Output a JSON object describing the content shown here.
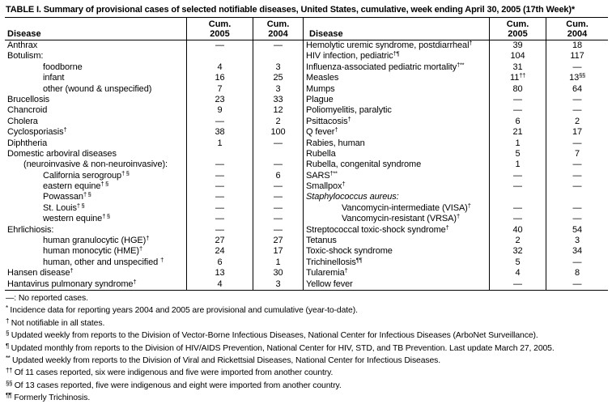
{
  "title": "TABLE I. Summary of provisional cases of selected notifiable diseases, United States, cumulative, week ending April 30, 2005 (17th Week)*",
  "colors": {
    "background": "#ffffff",
    "text": "#000000",
    "rule": "#000000"
  },
  "table": {
    "header": {
      "disease": "Disease",
      "cum": "Cum.",
      "y2005": "2005",
      "y2004": "2004"
    },
    "left_rows": [
      {
        "label": "Anthrax",
        "v05": "—",
        "v04": "—"
      },
      {
        "label": "Botulism:",
        "v05": "",
        "v04": ""
      },
      {
        "label": "foodborne",
        "indent": 2,
        "v05": "4",
        "v04": "3"
      },
      {
        "label": "infant",
        "indent": 2,
        "v05": "16",
        "v04": "25"
      },
      {
        "label": "other (wound & unspecified)",
        "indent": 2,
        "v05": "7",
        "v04": "3"
      },
      {
        "label": "Brucellosis",
        "v05": "23",
        "v04": "33"
      },
      {
        "label": "Chancroid",
        "v05": "9",
        "v04": "12"
      },
      {
        "label": "Cholera",
        "v05": "—",
        "v04": "2"
      },
      {
        "label": "Cyclosporiasis",
        "sup": "†",
        "v05": "38",
        "v04": "100"
      },
      {
        "label": "Diphtheria",
        "v05": "1",
        "v04": "—"
      },
      {
        "label": "Domestic arboviral diseases",
        "v05": "",
        "v04": ""
      },
      {
        "label": "(neuroinvasive & non-neuroinvasive):",
        "indent": 1,
        "v05": "—",
        "v04": "—"
      },
      {
        "label": "California serogroup",
        "sup": "† §",
        "indent": 2,
        "v05": "—",
        "v04": "6"
      },
      {
        "label": "eastern equine",
        "sup": "† §",
        "indent": 2,
        "v05": "—",
        "v04": "—"
      },
      {
        "label": "Powassan",
        "sup": "† §",
        "indent": 2,
        "v05": "—",
        "v04": "—"
      },
      {
        "label": "St. Louis",
        "sup": "† §",
        "indent": 2,
        "v05": "—",
        "v04": "—"
      },
      {
        "label": "western equine",
        "sup": "† §",
        "indent": 2,
        "v05": "—",
        "v04": "—"
      },
      {
        "label": "Ehrlichiosis:",
        "v05": "—",
        "v04": "—"
      },
      {
        "label": "human granulocytic (HGE)",
        "sup": "†",
        "indent": 2,
        "v05": "27",
        "v04": "27"
      },
      {
        "label": "human monocytic (HME)",
        "sup": "†",
        "indent": 2,
        "v05": "24",
        "v04": "17"
      },
      {
        "label": "human, other and unspecified ",
        "sup": "†",
        "indent": 2,
        "v05": "6",
        "v04": "1"
      },
      {
        "label": "Hansen disease",
        "sup": "†",
        "v05": "13",
        "v04": "30"
      },
      {
        "label": "Hantavirus pulmonary syndrome",
        "sup": "†",
        "v05": "4",
        "v04": "3"
      }
    ],
    "right_rows": [
      {
        "label": "Hemolytic uremic syndrome, postdiarrheal",
        "sup": "†",
        "v05": "39",
        "v04": "18"
      },
      {
        "label": "HIV infection, pediatric",
        "sup": "†¶",
        "v05": "104",
        "v04": "117"
      },
      {
        "label": "Influenza-associated pediatric mortality",
        "sup": "†**",
        "v05": "31",
        "v04": "—"
      },
      {
        "label": "Measles",
        "v05": "11",
        "v05sup": "††",
        "v04": "13",
        "v04sup": "§§"
      },
      {
        "label": "Mumps",
        "v05": "80",
        "v04": "64"
      },
      {
        "label": "Plague",
        "v05": "—",
        "v04": "—"
      },
      {
        "label": "Poliomyelitis, paralytic",
        "v05": "—",
        "v04": "—"
      },
      {
        "label": "Psittacosis",
        "sup": "†",
        "v05": "6",
        "v04": "2"
      },
      {
        "label": "Q fever",
        "sup": "†",
        "v05": "21",
        "v04": "17"
      },
      {
        "label": "Rabies, human",
        "v05": "1",
        "v04": "—"
      },
      {
        "label": "Rubella",
        "v05": "5",
        "v04": "7"
      },
      {
        "label": "Rubella, congenital syndrome",
        "v05": "1",
        "v04": "—"
      },
      {
        "label": "SARS",
        "sup": "†**",
        "v05": "—",
        "v04": "—"
      },
      {
        "label": "Smallpox",
        "sup": "†",
        "v05": "—",
        "v04": "—"
      },
      {
        "label": "Staphylococcus aureus:",
        "italic": true,
        "v05": "",
        "v04": ""
      },
      {
        "label": "Vancomycin-intermediate (VISA)",
        "sup": "†",
        "indent": 2,
        "v05": "—",
        "v04": "—"
      },
      {
        "label": "Vancomycin-resistant (VRSA)",
        "sup": "†",
        "indent": 2,
        "v05": "—",
        "v04": "—"
      },
      {
        "label": "Streptococcal toxic-shock syndrome",
        "sup": "†",
        "v05": "40",
        "v04": "54"
      },
      {
        "label": "Tetanus",
        "v05": "2",
        "v04": "3"
      },
      {
        "label": "Toxic-shock syndrome",
        "v05": "32",
        "v04": "34"
      },
      {
        "label": "Trichinellosis",
        "sup": "¶¶",
        "v05": "5",
        "v04": "—"
      },
      {
        "label": "Tularemia",
        "sup": "†",
        "v05": "4",
        "v04": "8"
      },
      {
        "label": "Yellow fever",
        "v05": "—",
        "v04": "—"
      }
    ]
  },
  "footnotes": [
    {
      "marker": "—:",
      "sup": false,
      "text": "No reported cases."
    },
    {
      "marker": "*",
      "sup": true,
      "text": "Incidence data for reporting years 2004 and 2005 are provisional and cumulative (year-to-date)."
    },
    {
      "marker": "†",
      "sup": true,
      "text": "Not notifiable in all states."
    },
    {
      "marker": "§",
      "sup": true,
      "text": "Updated weekly from reports to the Division of Vector-Borne Infectious Diseases, National Center for Infectious Diseases (ArboNet Surveillance)."
    },
    {
      "marker": "¶",
      "sup": true,
      "text": "Updated monthly from reports to the Division of HIV/AIDS Prevention, National Center for HIV, STD, and TB Prevention. Last update March 27, 2005."
    },
    {
      "marker": "**",
      "sup": true,
      "text": "Updated weekly from reports to the Division of Viral and Rickettsial Diseases, National Center for Infectious Diseases."
    },
    {
      "marker": "††",
      "sup": true,
      "text": "Of 11 cases reported, six were indigenous and five were imported from another country."
    },
    {
      "marker": "§§",
      "sup": true,
      "text": "Of 13 cases reported, five were indigenous and eight were imported from another country."
    },
    {
      "marker": "¶¶",
      "sup": true,
      "text": "Formerly Trichinosis."
    }
  ]
}
